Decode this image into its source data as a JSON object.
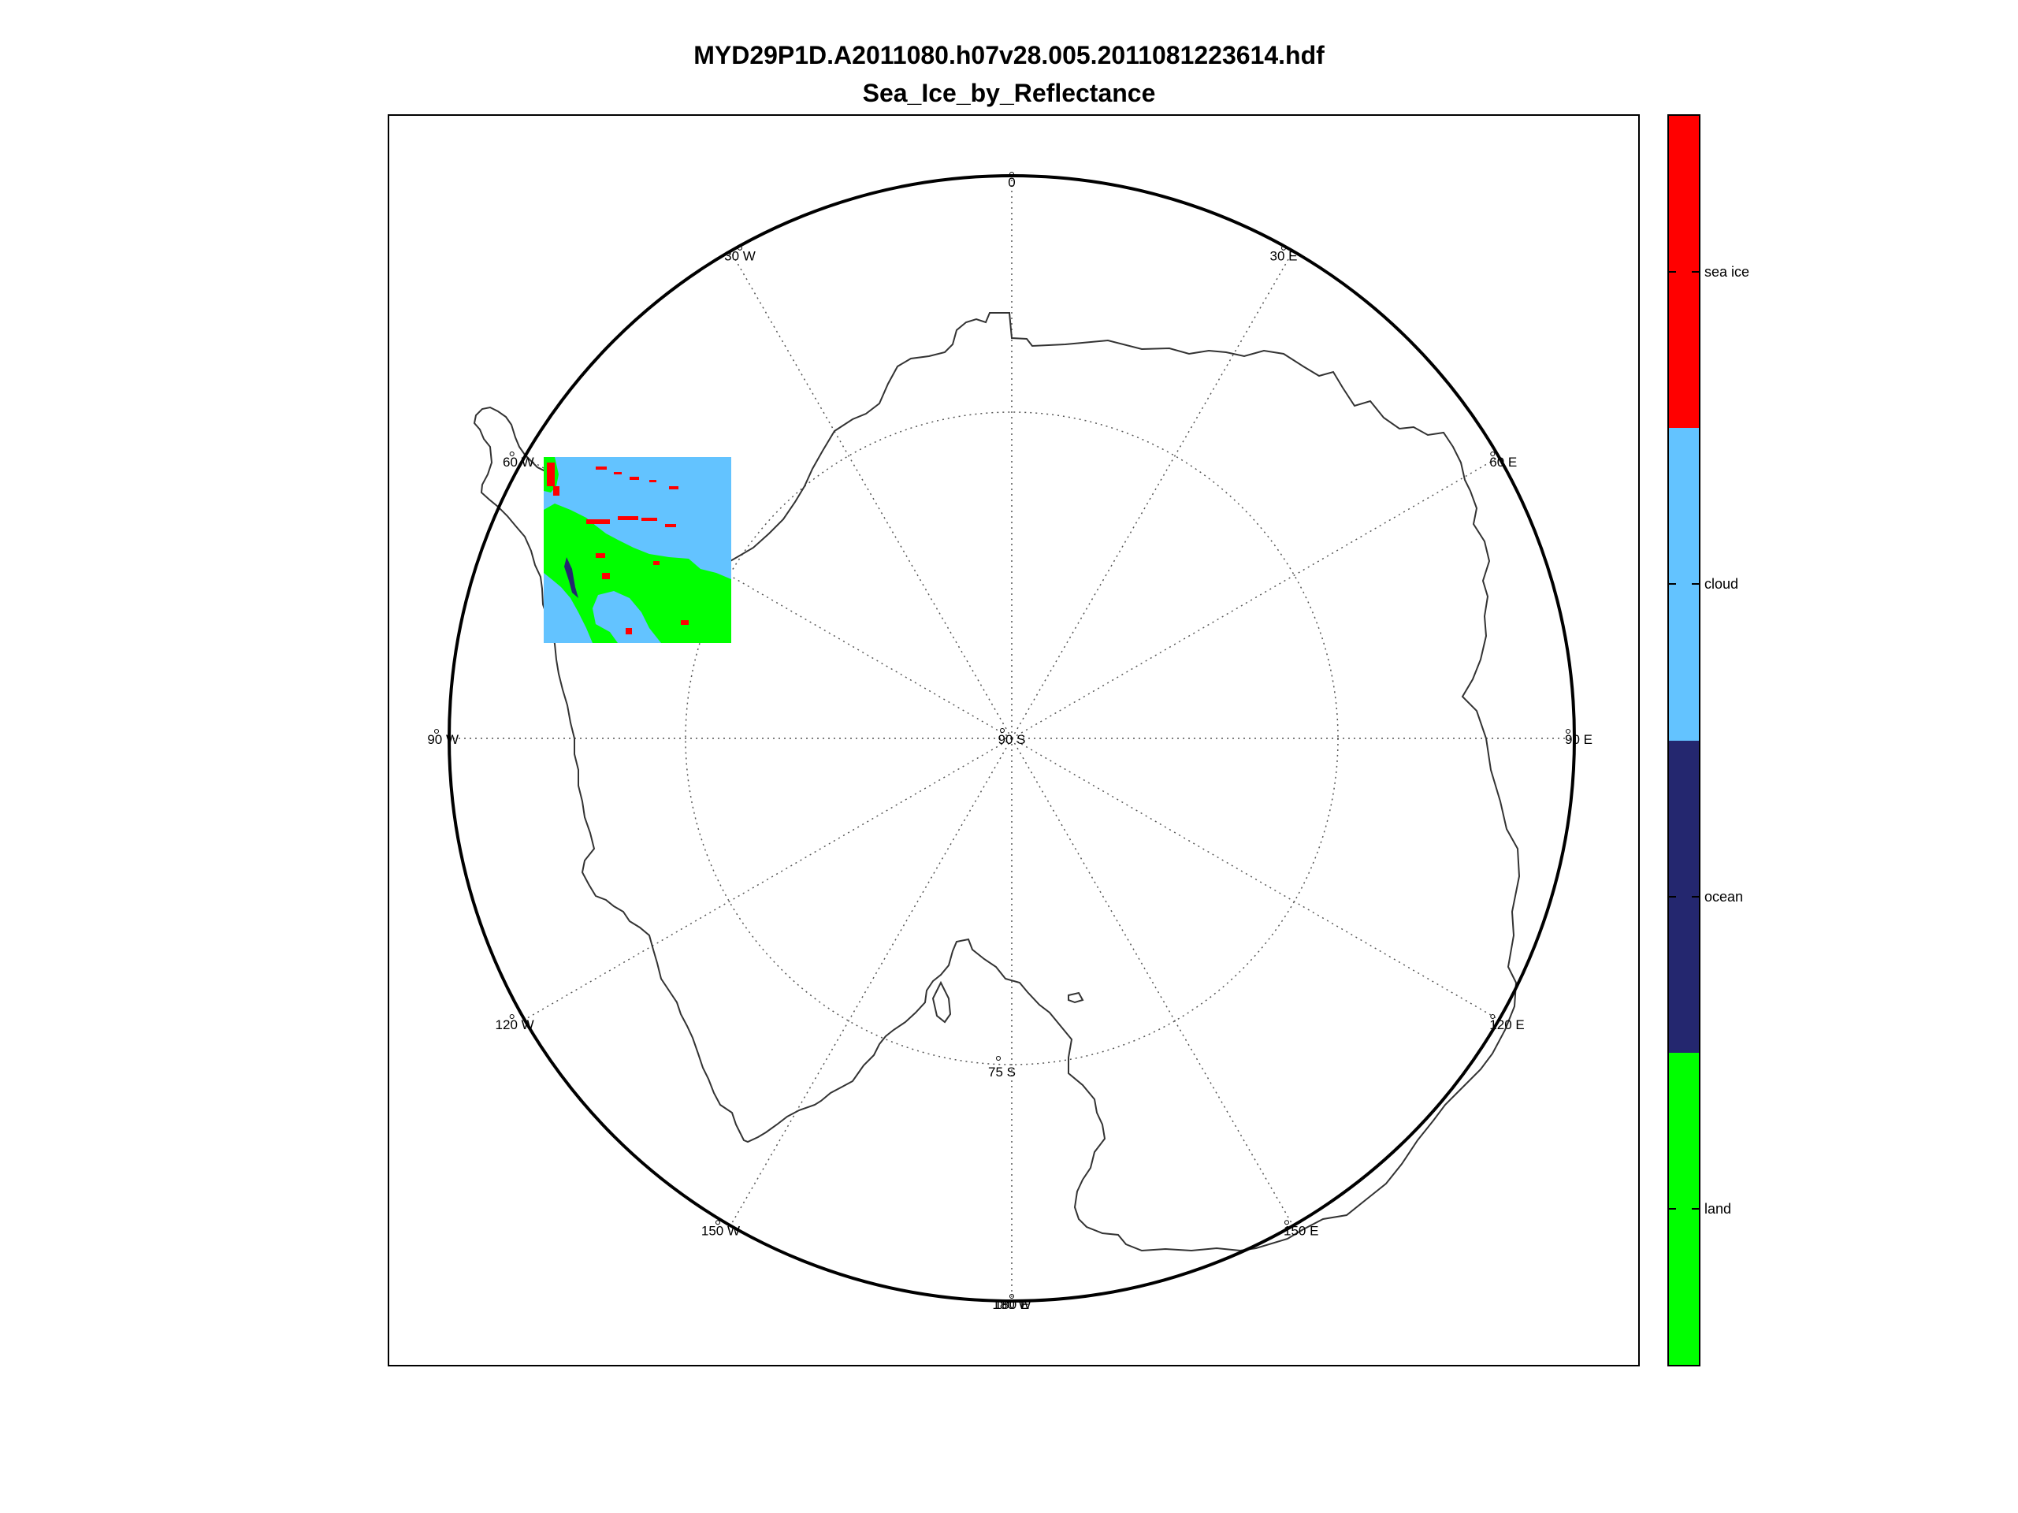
{
  "title": {
    "file_name": "MYD29P1D.A2011080.h07v28.005.2011081223614.hdf",
    "dataset_name": "Sea_Ice_by_Reflectance"
  },
  "map": {
    "projection": "south-polar-stereographic",
    "center_label": "90 S",
    "latitude_circle_label": "75 S",
    "longitude_labels": [
      "0",
      "30 E",
      "60 E",
      "90 E",
      "120 E",
      "150 E",
      "180 E",
      "150 W",
      "120 W",
      "90 W",
      "60 W",
      "30 W",
      "180 W"
    ],
    "gridlines": "dotted",
    "boundary_color": "#000000",
    "coastline_color": "#333333"
  },
  "legend": {
    "placement": "right",
    "categories": [
      {
        "label": "sea ice",
        "color": "#ff0000"
      },
      {
        "label": "cloud",
        "color": "#63c3ff"
      },
      {
        "label": "ocean",
        "color": "#24276f"
      },
      {
        "label": "land",
        "color": "#00ff00"
      }
    ]
  }
}
